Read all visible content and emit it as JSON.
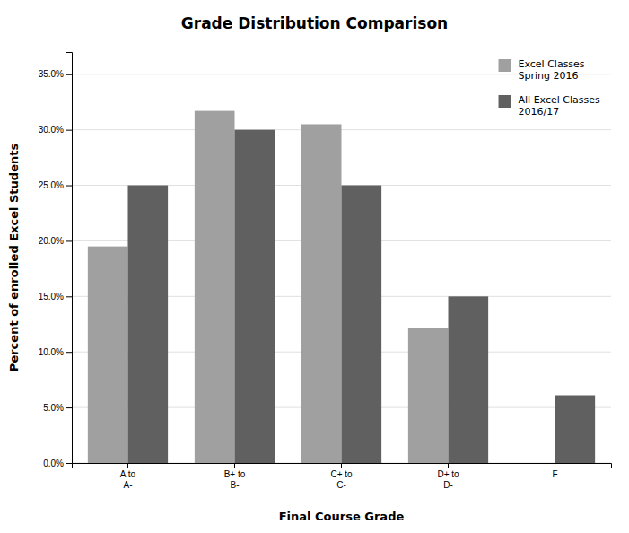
{
  "chart_data": {
    "type": "bar",
    "title": "Grade Distribution Comparison",
    "xlabel": "Final Course Grade",
    "ylabel": "Percent of enrolled Excel Students",
    "categories": [
      "A to\nA-",
      "B+ to\nB-",
      "C+ to\nC-",
      "D+ to\nD-",
      "F"
    ],
    "series": [
      {
        "name": "Excel Classes\nSpring 2016",
        "color": "#a0a0a0",
        "values": [
          0.195,
          0.317,
          0.305,
          0.122,
          0.0
        ]
      },
      {
        "name": "All Excel Classes\n2016/17",
        "color": "#606060",
        "values": [
          0.25,
          0.3,
          0.25,
          0.15,
          0.061
        ]
      }
    ],
    "ylim": [
      0,
      0.37
    ],
    "yticks": [
      {
        "value": 0,
        "label": "0.0%"
      },
      {
        "value": 0.05,
        "label": "5.0%"
      },
      {
        "value": 0.1,
        "label": "10.0%"
      },
      {
        "value": 0.15,
        "label": "15.0%"
      },
      {
        "value": 0.2,
        "label": "20.0%"
      },
      {
        "value": 0.25,
        "label": "25.0%"
      },
      {
        "value": 0.3,
        "label": "30.0%"
      },
      {
        "value": 0.35,
        "label": "35.0%"
      }
    ],
    "grid": true,
    "legend": "upper-right"
  }
}
